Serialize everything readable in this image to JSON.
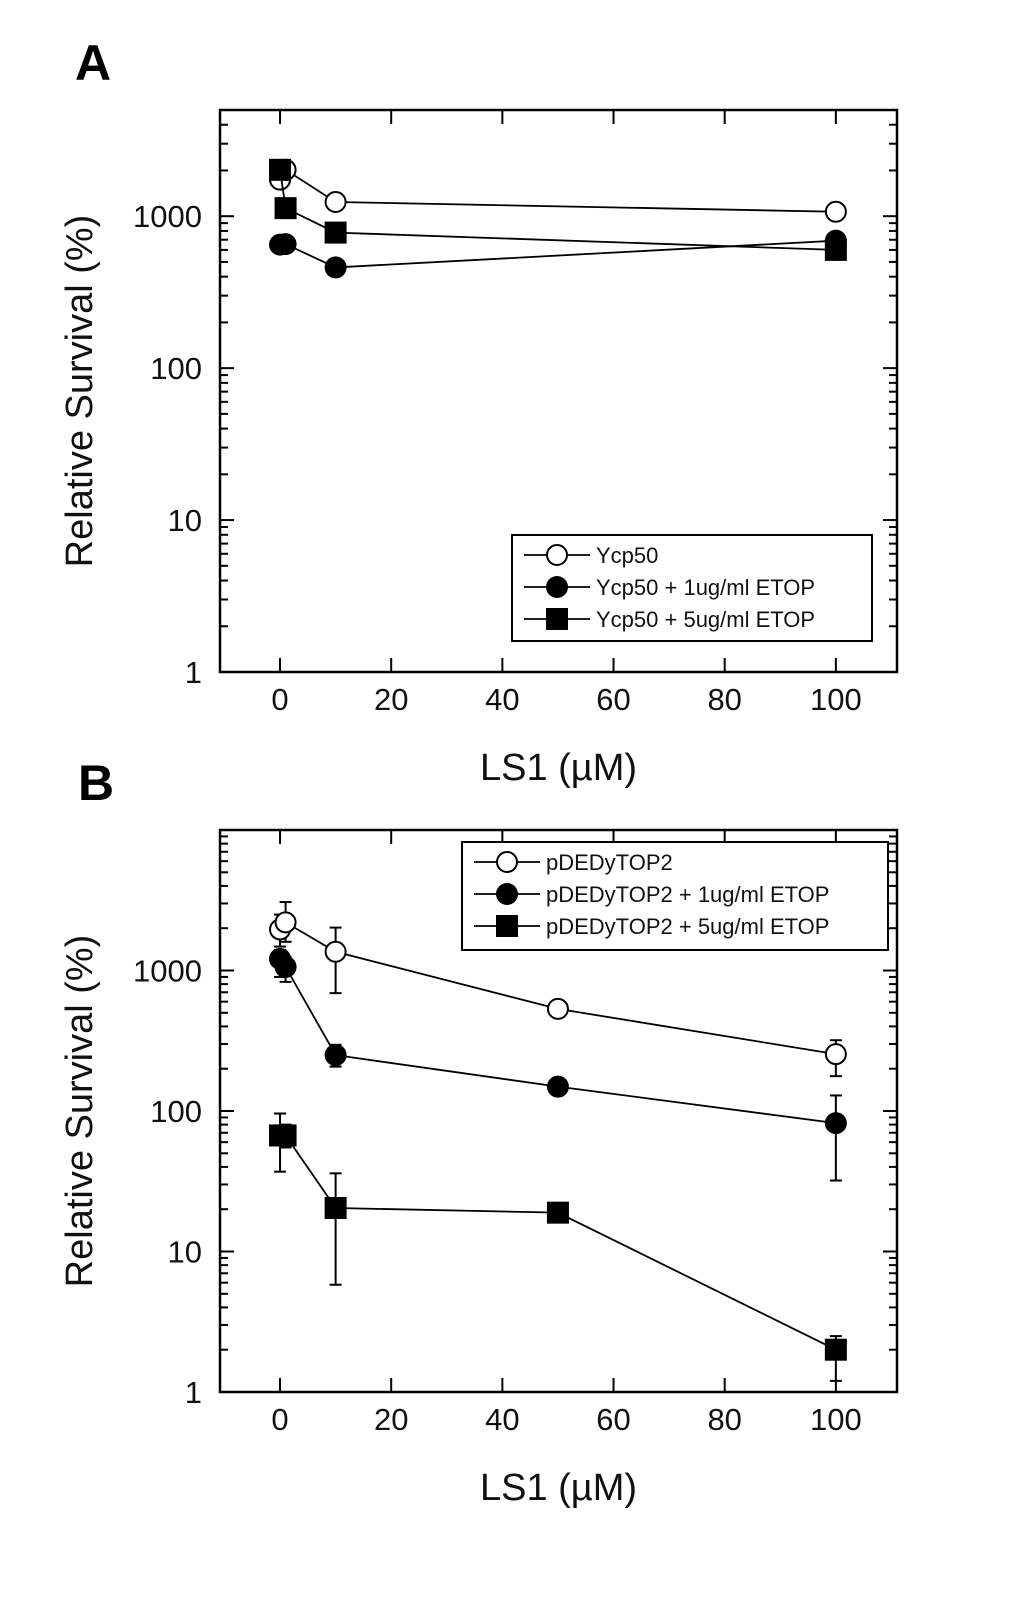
{
  "chart_data": [
    {
      "panel": "A",
      "type": "line",
      "xlabel": "LS1 (µM)",
      "ylabel": "Relative Survival (%)",
      "xlim": [
        -10.8,
        111
      ],
      "ylim": [
        1,
        5000
      ],
      "yscale": "log",
      "xticks": [
        0,
        20,
        40,
        60,
        80,
        100
      ],
      "yticks": [
        1,
        10,
        100,
        1000
      ],
      "grid": false,
      "legend_position": "bottom-right",
      "series": [
        {
          "name": "Ycp50",
          "marker": "open-circle",
          "points": [
            {
              "x": 0,
              "y": 1740
            },
            {
              "x": 1,
              "y": 2020
            },
            {
              "x": 10,
              "y": 1240
            },
            {
              "x": 100,
              "y": 1070
            }
          ]
        },
        {
          "name": "Ycp50 + 1ug/ml ETOP",
          "marker": "filled-circle",
          "points": [
            {
              "x": 0,
              "y": 650
            },
            {
              "x": 1,
              "y": 655
            },
            {
              "x": 10,
              "y": 460
            },
            {
              "x": 100,
              "y": 690
            }
          ]
        },
        {
          "name": "Ycp50 + 5ug/ml ETOP",
          "marker": "filled-square",
          "points": [
            {
              "x": 0,
              "y": 2020
            },
            {
              "x": 1,
              "y": 1130
            },
            {
              "x": 10,
              "y": 780
            },
            {
              "x": 100,
              "y": 600
            }
          ]
        }
      ]
    },
    {
      "panel": "B",
      "type": "line",
      "xlabel": "LS1 (µM)",
      "ylabel": "Relative Survival (%)",
      "xlim": [
        -10.8,
        111
      ],
      "ylim": [
        1,
        10000
      ],
      "yscale": "log",
      "xticks": [
        0,
        20,
        40,
        60,
        80,
        100
      ],
      "yticks": [
        1,
        10,
        100,
        1000
      ],
      "grid": false,
      "legend_position": "top-right",
      "series": [
        {
          "name": "pDEDyTOP2",
          "marker": "open-circle",
          "points": [
            {
              "x": 0,
              "y": 1960,
              "err_low": 1480,
              "err_high": 2500
            },
            {
              "x": 1,
              "y": 2200,
              "err_low": 1600,
              "err_high": 3070
            },
            {
              "x": 10,
              "y": 1360,
              "err_low": 690,
              "err_high": 2020
            },
            {
              "x": 50,
              "y": 533
            },
            {
              "x": 100,
              "y": 254,
              "err_low": 177,
              "err_high": 319
            }
          ]
        },
        {
          "name": "pDEDyTOP2 + 1ug/ml ETOP",
          "marker": "filled-circle",
          "points": [
            {
              "x": 0,
              "y": 1210,
              "err_low": 900,
              "err_high": 1400
            },
            {
              "x": 1,
              "y": 1060,
              "err_low": 830,
              "err_high": 1250
            },
            {
              "x": 10,
              "y": 250,
              "err_low": 207,
              "err_high": 296
            },
            {
              "x": 50,
              "y": 149
            },
            {
              "x": 100,
              "y": 82,
              "err_low": 32,
              "err_high": 129
            }
          ]
        },
        {
          "name": "pDEDyTOP2 + 5ug/ml ETOP",
          "marker": "filled-square",
          "points": [
            {
              "x": 0,
              "y": 67,
              "err_low": 37,
              "err_high": 96
            },
            {
              "x": 1,
              "y": 67,
              "err_low": 55,
              "err_high": 80
            },
            {
              "x": 10,
              "y": 20.4,
              "err_low": 5.8,
              "err_high": 36
            },
            {
              "x": 50,
              "y": 18.9
            },
            {
              "x": 100,
              "y": 2.0,
              "err_low": 1.2,
              "err_high": 2.5
            }
          ]
        }
      ]
    }
  ]
}
